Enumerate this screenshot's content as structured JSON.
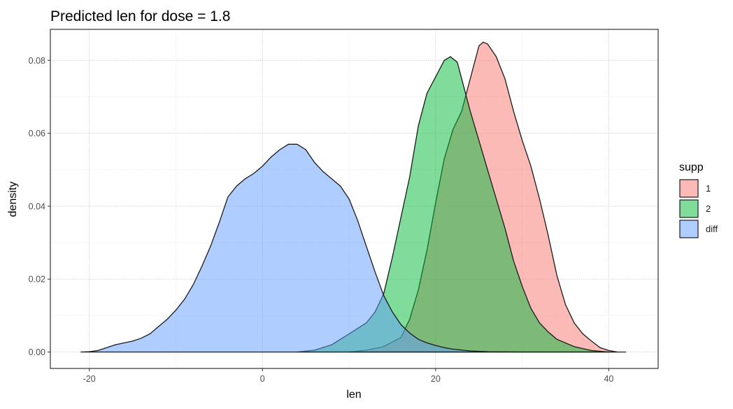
{
  "chart_data": {
    "type": "area",
    "title": "Predicted len for dose = 1.8",
    "xlabel": "len",
    "ylabel": "density",
    "xlim": [
      -24.5,
      45.7
    ],
    "ylim": [
      -0.0045,
      0.0885
    ],
    "x_ticks": [
      -20,
      0,
      20,
      40
    ],
    "x_tick_labels": [
      "-20",
      "0",
      "20",
      "40"
    ],
    "y_ticks": [
      0.0,
      0.02,
      0.04,
      0.06,
      0.08
    ],
    "y_tick_labels": [
      "0.00",
      "0.02",
      "0.04",
      "0.06",
      "0.08"
    ],
    "grid": true,
    "legend": {
      "title": "supp",
      "position": "right"
    },
    "series": [
      {
        "name": "1",
        "color": "#f8766d",
        "points": [
          [
            10,
            0
          ],
          [
            12,
            0.0005
          ],
          [
            14,
            0.0015
          ],
          [
            16,
            0.004
          ],
          [
            17,
            0.009
          ],
          [
            18,
            0.017
          ],
          [
            19,
            0.028
          ],
          [
            20,
            0.041
          ],
          [
            21,
            0.053
          ],
          [
            22,
            0.061
          ],
          [
            23,
            0.066
          ],
          [
            24,
            0.075
          ],
          [
            25,
            0.084
          ],
          [
            25.5,
            0.085
          ],
          [
            26,
            0.0845
          ],
          [
            27,
            0.081
          ],
          [
            28,
            0.075
          ],
          [
            29,
            0.066
          ],
          [
            30,
            0.058
          ],
          [
            31,
            0.051
          ],
          [
            32,
            0.042
          ],
          [
            33,
            0.032
          ],
          [
            34,
            0.021
          ],
          [
            35,
            0.013
          ],
          [
            36,
            0.008
          ],
          [
            37,
            0.005
          ],
          [
            38,
            0.003
          ],
          [
            39,
            0.0012
          ],
          [
            40,
            0.0004
          ],
          [
            41,
            0
          ]
        ]
      },
      {
        "name": "2",
        "color": "#00ba38",
        "points": [
          [
            4,
            0
          ],
          [
            6,
            0.0005
          ],
          [
            8,
            0.002
          ],
          [
            10,
            0.005
          ],
          [
            11,
            0.0065
          ],
          [
            12,
            0.008
          ],
          [
            13,
            0.011
          ],
          [
            14,
            0.016
          ],
          [
            15,
            0.026
          ],
          [
            16,
            0.037
          ],
          [
            17,
            0.048
          ],
          [
            18,
            0.062
          ],
          [
            19,
            0.071
          ],
          [
            20,
            0.0755
          ],
          [
            21,
            0.08
          ],
          [
            21.7,
            0.081
          ],
          [
            22.5,
            0.0795
          ],
          [
            23,
            0.075
          ],
          [
            24,
            0.066
          ],
          [
            25,
            0.058
          ],
          [
            26,
            0.05
          ],
          [
            27,
            0.042
          ],
          [
            28,
            0.034
          ],
          [
            29,
            0.025
          ],
          [
            30,
            0.018
          ],
          [
            31,
            0.012
          ],
          [
            32,
            0.008
          ],
          [
            33,
            0.0055
          ],
          [
            34,
            0.0035
          ],
          [
            36,
            0.0015
          ],
          [
            38,
            0.0004
          ],
          [
            40,
            0
          ]
        ]
      },
      {
        "name": "diff",
        "color": "#619cff",
        "points": [
          [
            -21,
            0
          ],
          [
            -20,
            0.0001
          ],
          [
            -19,
            0.0004
          ],
          [
            -18,
            0.0012
          ],
          [
            -17,
            0.002
          ],
          [
            -16,
            0.0025
          ],
          [
            -15,
            0.003
          ],
          [
            -14,
            0.0038
          ],
          [
            -13,
            0.005
          ],
          [
            -12,
            0.007
          ],
          [
            -11,
            0.009
          ],
          [
            -10,
            0.0115
          ],
          [
            -9,
            0.0145
          ],
          [
            -8,
            0.0185
          ],
          [
            -7,
            0.0235
          ],
          [
            -6,
            0.029
          ],
          [
            -5,
            0.0355
          ],
          [
            -4,
            0.0425
          ],
          [
            -3,
            0.0455
          ],
          [
            -2,
            0.0475
          ],
          [
            -1,
            0.049
          ],
          [
            0,
            0.051
          ],
          [
            1,
            0.0535
          ],
          [
            2,
            0.0555
          ],
          [
            3,
            0.057
          ],
          [
            4,
            0.057
          ],
          [
            5,
            0.0555
          ],
          [
            6,
            0.052
          ],
          [
            7,
            0.0495
          ],
          [
            8,
            0.0475
          ],
          [
            9,
            0.0455
          ],
          [
            10,
            0.042
          ],
          [
            11,
            0.036
          ],
          [
            12,
            0.029
          ],
          [
            13,
            0.022
          ],
          [
            14,
            0.0155
          ],
          [
            15,
            0.011
          ],
          [
            16,
            0.0075
          ],
          [
            17,
            0.0052
          ],
          [
            18,
            0.0035
          ],
          [
            19,
            0.0025
          ],
          [
            20,
            0.0018
          ],
          [
            21,
            0.0012
          ],
          [
            22,
            0.0008
          ],
          [
            24,
            0.0003
          ],
          [
            26,
            0.0001
          ],
          [
            28,
            5e-05
          ],
          [
            30,
            0
          ],
          [
            35,
            0
          ],
          [
            40,
            0
          ],
          [
            42,
            0
          ]
        ]
      }
    ]
  }
}
